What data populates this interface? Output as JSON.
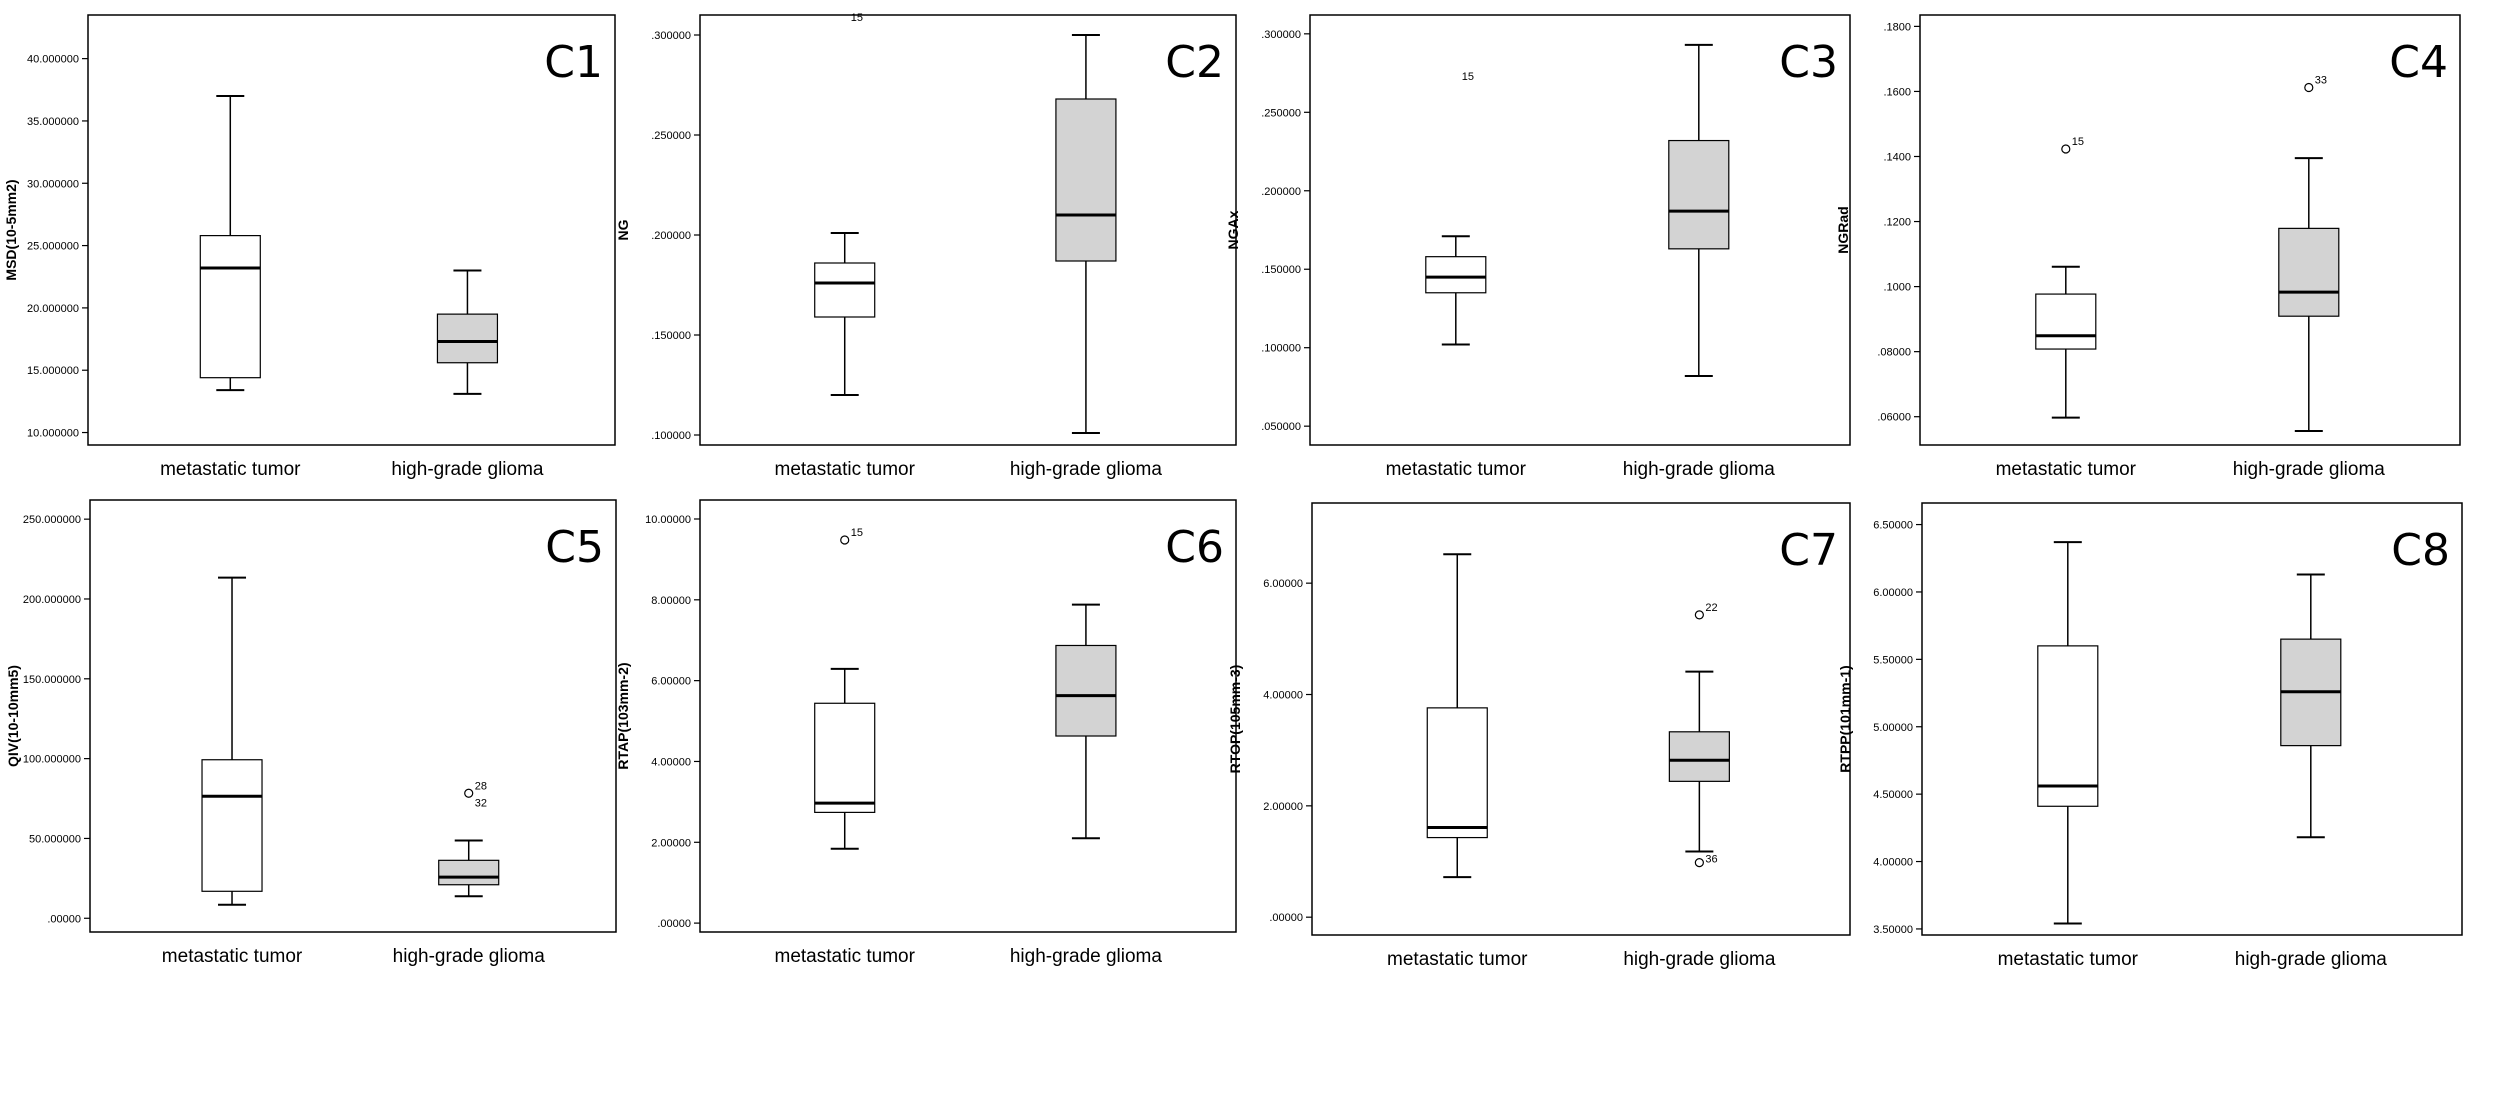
{
  "figure_title": "",
  "chart_data": [
    {
      "type": "box",
      "panel_label": "C1",
      "ylabel": "MSD(10-5mm2)",
      "categories": [
        "metastatic tumor",
        "high-grade glioma"
      ],
      "ylim": [
        9.0,
        43.5
      ],
      "yticks": [
        10,
        15,
        20,
        25,
        30,
        35,
        40
      ],
      "ytick_labels": [
        "10.000000",
        "15.000000",
        "20.000000",
        "25.000000",
        "30.000000",
        "35.000000",
        "40.000000"
      ],
      "grid": false,
      "boxes": [
        {
          "category": "metastatic tumor",
          "fill": "#ffffff",
          "min": 13.4,
          "q1": 14.4,
          "median": 23.2,
          "q3": 25.8,
          "max": 37.0,
          "outliers": []
        },
        {
          "category": "high-grade glioma",
          "fill": "#d3d3d3",
          "min": 13.1,
          "q1": 15.6,
          "median": 17.3,
          "q3": 19.5,
          "max": 23.0,
          "outliers": []
        }
      ]
    },
    {
      "type": "box",
      "panel_label": "C2",
      "ylabel": "NG",
      "categories": [
        "metastatic tumor",
        "high-grade glioma"
      ],
      "ylim": [
        0.095,
        0.31
      ],
      "yticks": [
        0.1,
        0.15,
        0.2,
        0.25,
        0.3
      ],
      "ytick_labels": [
        ".100000",
        ".150000",
        ".200000",
        ".250000",
        ".300000"
      ],
      "grid": false,
      "boxes": [
        {
          "category": "metastatic tumor",
          "fill": "#ffffff",
          "min": 0.12,
          "q1": 0.159,
          "median": 0.176,
          "q3": 0.186,
          "max": 0.201,
          "outliers": [
            {
              "value": 0.305,
              "label": "15",
              "marker": "none"
            }
          ]
        },
        {
          "category": "high-grade glioma",
          "fill": "#d3d3d3",
          "min": 0.101,
          "q1": 0.187,
          "median": 0.21,
          "q3": 0.268,
          "max": 0.3,
          "outliers": []
        }
      ]
    },
    {
      "type": "box",
      "panel_label": "C3",
      "ylabel": "NGAx",
      "categories": [
        "metastatic tumor",
        "high-grade glioma"
      ],
      "ylim": [
        0.038,
        0.312
      ],
      "yticks": [
        0.05,
        0.1,
        0.15,
        0.2,
        0.25,
        0.3
      ],
      "ytick_labels": [
        ".050000",
        ".100000",
        ".150000",
        ".200000",
        ".250000",
        ".300000"
      ],
      "grid": false,
      "boxes": [
        {
          "category": "metastatic tumor",
          "fill": "#ffffff",
          "min": 0.102,
          "q1": 0.135,
          "median": 0.145,
          "q3": 0.158,
          "max": 0.171,
          "outliers": [
            {
              "value": 0.268,
              "label": "15",
              "marker": "none"
            }
          ]
        },
        {
          "category": "high-grade glioma",
          "fill": "#d3d3d3",
          "min": 0.082,
          "q1": 0.163,
          "median": 0.187,
          "q3": 0.232,
          "max": 0.293,
          "outliers": []
        }
      ]
    },
    {
      "type": "box",
      "panel_label": "C4",
      "ylabel": "NGRad",
      "categories": [
        "metastatic tumor",
        "high-grade glioma"
      ],
      "ylim": [
        0.0513,
        0.1835
      ],
      "yticks": [
        0.06,
        0.08,
        0.1,
        0.12,
        0.14,
        0.16,
        0.18
      ],
      "ytick_labels": [
        ".06000",
        ".08000",
        ".1000",
        ".1200",
        ".1400",
        ".1600",
        ".1800"
      ],
      "grid": false,
      "boxes": [
        {
          "category": "metastatic tumor",
          "fill": "#ffffff",
          "min": 0.0597,
          "q1": 0.0808,
          "median": 0.0849,
          "q3": 0.0977,
          "max": 0.1061,
          "outliers": [
            {
              "value": 0.1423,
              "label": "15",
              "marker": "circle"
            }
          ]
        },
        {
          "category": "high-grade glioma",
          "fill": "#d3d3d3",
          "min": 0.0556,
          "q1": 0.0909,
          "median": 0.0983,
          "q3": 0.1179,
          "max": 0.1395,
          "outliers": [
            {
              "value": 0.1612,
              "label": "33",
              "marker": "circle"
            }
          ]
        }
      ]
    },
    {
      "type": "box",
      "panel_label": "C5",
      "ylabel": "QIV(10-10mm5)",
      "categories": [
        "metastatic tumor",
        "high-grade glioma"
      ],
      "ylim": [
        -8.6,
        262.0
      ],
      "yticks": [
        0,
        50,
        100,
        150,
        200,
        250
      ],
      "ytick_labels": [
        ".00000",
        "50.000000",
        "100.000000",
        "150.000000",
        "200.000000",
        "250.000000"
      ],
      "grid": false,
      "boxes": [
        {
          "category": "metastatic tumor",
          "fill": "#ffffff",
          "min": 8.5,
          "q1": 16.9,
          "median": 76.4,
          "q3": 99.3,
          "max": 213.4,
          "outliers": []
        },
        {
          "category": "high-grade glioma",
          "fill": "#d3d3d3",
          "min": 13.8,
          "q1": 21.0,
          "median": 25.8,
          "q3": 36.3,
          "max": 48.7,
          "outliers": [
            {
              "value": 78.3,
              "label": "28",
              "marker": "circle"
            },
            {
              "value": 76.4,
              "label": "32",
              "marker": "none"
            }
          ]
        }
      ]
    },
    {
      "type": "box",
      "panel_label": "C6",
      "ylabel": "RTAP(103mm-2)",
      "categories": [
        "metastatic tumor",
        "high-grade glioma"
      ],
      "ylim": [
        -0.22,
        10.47
      ],
      "yticks": [
        0,
        2,
        4,
        6,
        8,
        10
      ],
      "ytick_labels": [
        ".00000",
        "2.00000",
        "4.00000",
        "6.00000",
        "8.00000",
        "10.00000"
      ],
      "grid": false,
      "boxes": [
        {
          "category": "metastatic tumor",
          "fill": "#ffffff",
          "min": 1.84,
          "q1": 2.74,
          "median": 2.97,
          "q3": 5.44,
          "max": 6.29,
          "outliers": [
            {
              "value": 9.48,
              "label": "15",
              "marker": "circle"
            }
          ]
        },
        {
          "category": "high-grade glioma",
          "fill": "#d3d3d3",
          "min": 2.1,
          "q1": 4.63,
          "median": 5.63,
          "q3": 6.87,
          "max": 7.88,
          "outliers": []
        }
      ]
    },
    {
      "type": "box",
      "panel_label": "C7",
      "ylabel": "RTOP(105mm-3)",
      "categories": [
        "metastatic tumor",
        "high-grade glioma"
      ],
      "ylim": [
        -0.32,
        7.44
      ],
      "yticks": [
        0,
        2,
        4,
        6
      ],
      "ytick_labels": [
        ".00000",
        "2.00000",
        "4.00000",
        "6.00000"
      ],
      "grid": false,
      "boxes": [
        {
          "category": "metastatic tumor",
          "fill": "#ffffff",
          "min": 0.72,
          "q1": 1.43,
          "median": 1.61,
          "q3": 3.76,
          "max": 6.52,
          "outliers": []
        },
        {
          "category": "high-grade glioma",
          "fill": "#d3d3d3",
          "min": 1.18,
          "q1": 2.44,
          "median": 2.82,
          "q3": 3.33,
          "max": 4.41,
          "outliers": [
            {
              "value": 5.43,
              "label": "22",
              "marker": "circle"
            },
            {
              "value": 0.98,
              "label": "36",
              "marker": "circle"
            }
          ]
        }
      ]
    },
    {
      "type": "box",
      "panel_label": "C8",
      "ylabel": "RTPP(101mm-1)",
      "categories": [
        "metastatic tumor",
        "high-grade glioma"
      ],
      "ylim": [
        3.455,
        6.66
      ],
      "yticks": [
        3.5,
        4.0,
        4.5,
        5.0,
        5.5,
        6.0,
        6.5
      ],
      "ytick_labels": [
        "3.50000",
        "4.00000",
        "4.50000",
        "5.00000",
        "5.50000",
        "6.00000",
        "6.50000"
      ],
      "grid": false,
      "boxes": [
        {
          "category": "metastatic tumor",
          "fill": "#ffffff",
          "min": 3.54,
          "q1": 4.41,
          "median": 4.56,
          "q3": 5.6,
          "max": 6.37,
          "outliers": []
        },
        {
          "category": "high-grade glioma",
          "fill": "#d3d3d3",
          "min": 4.18,
          "q1": 4.86,
          "median": 5.26,
          "q3": 5.65,
          "max": 6.13,
          "outliers": []
        }
      ]
    }
  ]
}
